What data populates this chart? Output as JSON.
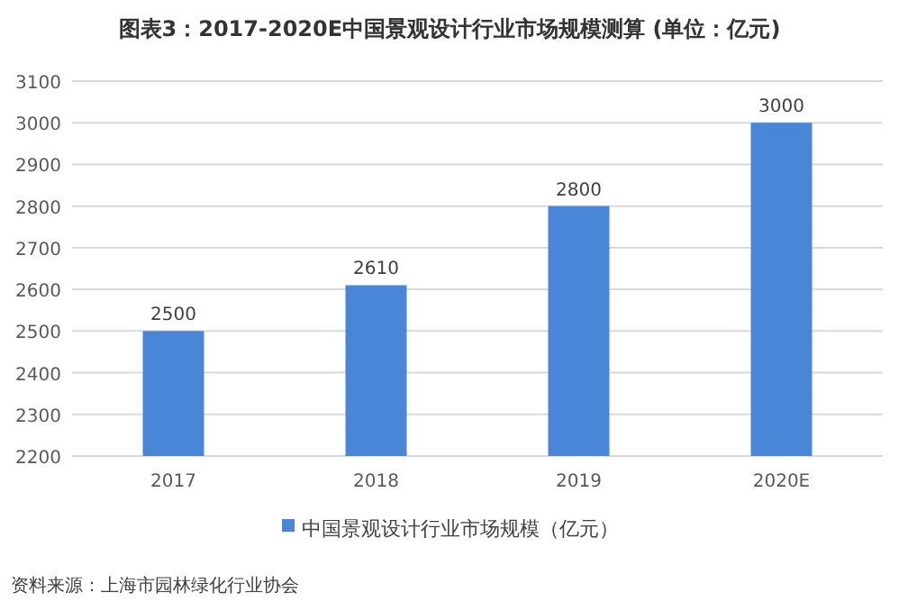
{
  "chart_data": {
    "type": "bar",
    "title": "图表3：2017-2020E中国景观设计行业市场规模测算 (单位：亿元)",
    "categories": [
      "2017",
      "2018",
      "2019",
      "2020E"
    ],
    "series": [
      {
        "name": "中国景观设计行业市场规模（亿元）",
        "color": "#4a86d8",
        "values": [
          2500,
          2610,
          2800,
          3000
        ]
      }
    ],
    "ylim": [
      2200,
      3100
    ],
    "yticks": [
      2200,
      2300,
      2400,
      2500,
      2600,
      2700,
      2800,
      2900,
      3000,
      3100
    ],
    "grid": "y",
    "legend": "bottom",
    "data_labels": true,
    "annotations": [
      "资料来源：上海市园林绿化行业协会"
    ]
  }
}
